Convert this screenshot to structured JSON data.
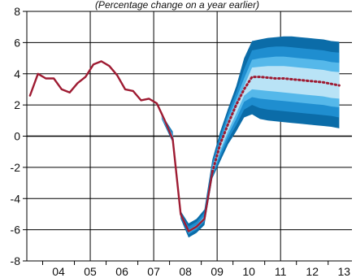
{
  "chart_data": {
    "type": "area",
    "title": "(Percentage change on a year earlier)",
    "xlabel": "",
    "ylabel": "",
    "xlim": [
      2003.5,
      2013.75
    ],
    "ylim": [
      -8,
      8
    ],
    "y_ticks": [
      -8,
      -6,
      -4,
      -2,
      0,
      2,
      4,
      6,
      8
    ],
    "x_tick_labels": [
      {
        "label": "04",
        "x": 2004.5
      },
      {
        "label": "05",
        "x": 2005.5
      },
      {
        "label": "06",
        "x": 2006.5
      },
      {
        "label": "07",
        "x": 2007.5
      },
      {
        "label": "08",
        "x": 2008.5
      },
      {
        "label": "09",
        "x": 2009.5
      },
      {
        "label": "10",
        "x": 2010.5
      },
      {
        "label": "11",
        "x": 2011.5
      },
      {
        "label": "12",
        "x": 2012.5
      },
      {
        "label": "13",
        "x": 2013.5
      }
    ],
    "vertical_gridlines": [
      2005.5,
      2007.5,
      2009.5,
      2011.5
    ],
    "horizontal_gridlines": [
      -8,
      -6,
      -4,
      -2,
      0,
      2,
      4,
      6,
      8
    ],
    "grid": true,
    "colors": {
      "line": "#9e1b32",
      "band_outer": "#0b6ca8",
      "band_2": "#1f8ed0",
      "band_3": "#55b8ea",
      "band_inner": "#b9e3f6",
      "axis": "#000000"
    },
    "series": [
      {
        "role": "data",
        "style": "solid",
        "x": [
          2003.6,
          2003.85,
          2004.1,
          2004.35,
          2004.6,
          2004.85,
          2005.1,
          2005.35,
          2005.6,
          2005.85,
          2006.1,
          2006.35,
          2006.6,
          2006.85,
          2007.1,
          2007.35,
          2007.6,
          2007.85,
          2008.1,
          2008.35,
          2008.6,
          2008.85,
          2009.1,
          2009.35
        ],
        "y": [
          2.6,
          4.0,
          3.7,
          3.7,
          3.0,
          2.8,
          3.4,
          3.8,
          4.6,
          4.8,
          4.5,
          3.9,
          3.0,
          2.9,
          2.3,
          2.4,
          2.1,
          1.0,
          -0.2,
          -5.0,
          -6.1,
          -5.8,
          -5.3,
          -2.3
        ]
      },
      {
        "role": "projection",
        "style": "dotted",
        "x": [
          2009.35,
          2009.6,
          2009.85,
          2010.1,
          2010.35,
          2010.6,
          2010.85,
          2011.1,
          2011.35,
          2011.6,
          2011.85,
          2012.1,
          2012.35,
          2012.6,
          2012.85,
          2013.1,
          2013.35
        ],
        "y": [
          -2.3,
          -0.5,
          0.8,
          2.0,
          3.0,
          3.8,
          3.8,
          3.75,
          3.7,
          3.7,
          3.65,
          3.6,
          3.55,
          3.5,
          3.45,
          3.35,
          3.25
        ]
      }
    ],
    "bands": [
      {
        "level": "outer",
        "x": [
          2007.75,
          2008.1,
          2008.35,
          2008.6,
          2008.85,
          2009.1,
          2009.35,
          2009.6,
          2009.85,
          2010.1,
          2010.35,
          2010.6,
          2010.85,
          2011.1,
          2011.35,
          2011.6,
          2011.85,
          2012.1,
          2012.35,
          2012.6,
          2012.85,
          2013.1,
          2013.35
        ],
        "low": [
          1.1,
          -0.4,
          -5.3,
          -6.5,
          -6.2,
          -5.7,
          -2.7,
          -1.6,
          -0.5,
          0.3,
          1.2,
          1.4,
          1.1,
          1.0,
          0.95,
          0.9,
          0.85,
          0.8,
          0.75,
          0.7,
          0.65,
          0.6,
          0.5
        ],
        "high": [
          1.4,
          0.3,
          -4.8,
          -5.6,
          -5.3,
          -4.7,
          -1.5,
          0.3,
          1.8,
          3.2,
          5.0,
          6.1,
          6.2,
          6.3,
          6.35,
          6.4,
          6.4,
          6.35,
          6.3,
          6.25,
          6.2,
          6.1,
          6.05
        ]
      },
      {
        "level": "middle",
        "x": [
          2007.75,
          2008.1,
          2008.35,
          2008.6,
          2008.85,
          2009.1,
          2009.35,
          2009.6,
          2009.85,
          2010.1,
          2010.35,
          2010.6,
          2010.85,
          2011.1,
          2011.35,
          2011.6,
          2011.85,
          2012.1,
          2012.35,
          2012.6,
          2012.85,
          2013.1,
          2013.35
        ],
        "low": [
          1.15,
          -0.3,
          -5.2,
          -6.3,
          -6.0,
          -5.5,
          -2.6,
          -1.35,
          -0.2,
          0.7,
          1.7,
          2.0,
          1.8,
          1.7,
          1.65,
          1.6,
          1.55,
          1.5,
          1.45,
          1.4,
          1.35,
          1.3,
          1.2
        ],
        "high": [
          1.35,
          0.2,
          -4.9,
          -5.8,
          -5.5,
          -4.9,
          -1.7,
          0.0,
          1.5,
          2.8,
          4.3,
          5.5,
          5.6,
          5.7,
          5.75,
          5.75,
          5.7,
          5.65,
          5.6,
          5.55,
          5.5,
          5.4,
          5.35
        ]
      },
      {
        "level": "inner-1",
        "x": [
          2007.75,
          2008.1,
          2008.35,
          2008.6,
          2008.85,
          2009.1,
          2009.35,
          2009.6,
          2009.85,
          2010.1,
          2010.35,
          2010.6,
          2010.85,
          2011.1,
          2011.35,
          2011.6,
          2011.85,
          2012.1,
          2012.35,
          2012.6,
          2012.85,
          2013.1,
          2013.35
        ],
        "low": [
          1.2,
          -0.25,
          -5.15,
          -6.2,
          -5.9,
          -5.4,
          -2.5,
          -1.1,
          0.1,
          1.1,
          2.2,
          2.5,
          2.4,
          2.35,
          2.3,
          2.25,
          2.2,
          2.15,
          2.1,
          2.05,
          2.0,
          1.9,
          1.85
        ],
        "high": [
          1.3,
          0.1,
          -5.0,
          -6.0,
          -5.7,
          -5.1,
          -1.9,
          -0.3,
          1.2,
          2.4,
          3.7,
          4.9,
          5.0,
          5.05,
          5.1,
          5.1,
          5.05,
          5.0,
          4.95,
          4.9,
          4.85,
          4.75,
          4.7
        ]
      },
      {
        "level": "inner-2",
        "x": [
          2007.75,
          2008.1,
          2008.35,
          2008.6,
          2008.85,
          2009.1,
          2009.35,
          2009.6,
          2009.85,
          2010.1,
          2010.35,
          2010.6,
          2010.85,
          2011.1,
          2011.35,
          2011.6,
          2011.85,
          2012.1,
          2012.35,
          2012.6,
          2012.85,
          2013.1,
          2013.35
        ],
        "low": [
          1.25,
          -0.2,
          -5.1,
          -6.15,
          -5.85,
          -5.35,
          -2.45,
          -0.9,
          0.35,
          1.45,
          2.6,
          3.0,
          2.95,
          2.9,
          2.85,
          2.8,
          2.75,
          2.7,
          2.65,
          2.6,
          2.55,
          2.45,
          2.4
        ],
        "high": [
          1.28,
          0.0,
          -5.05,
          -6.05,
          -5.75,
          -5.2,
          -2.0,
          -0.55,
          0.9,
          2.0,
          3.2,
          4.4,
          4.45,
          4.5,
          4.5,
          4.5,
          4.45,
          4.4,
          4.35,
          4.3,
          4.25,
          4.15,
          4.1
        ]
      }
    ]
  }
}
